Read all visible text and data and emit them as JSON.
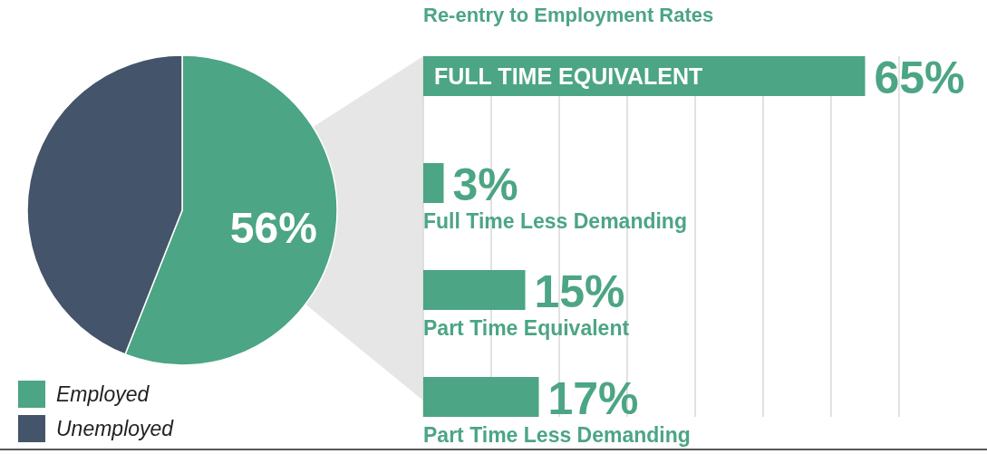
{
  "chart_data": [
    {
      "type": "pie",
      "categories": [
        "Employed",
        "Unemployed"
      ],
      "values": [
        56,
        44
      ],
      "colors": [
        "#4ca584",
        "#44546a"
      ],
      "value_labels": [
        "56%",
        null
      ],
      "legend": "bottom left"
    },
    {
      "type": "bar",
      "orientation": "horizontal",
      "title": "Re-entry to Employment Rates",
      "categories": [
        "FULL TIME EQUIVALENT",
        "Full Time Less Demanding",
        "Part Time Equivalent",
        "Part Time Less Demanding"
      ],
      "values": [
        65,
        3,
        15,
        17
      ],
      "value_labels": [
        "65%",
        "3%",
        "15%",
        "17%"
      ],
      "color": "#4ca584",
      "xlim": [
        0,
        70
      ],
      "xticks": [
        {
          "value": 0,
          "label": null
        },
        {
          "value": 10,
          "label": null
        },
        {
          "value": 20,
          "label": null
        },
        {
          "value": 30,
          "label": null
        },
        {
          "value": 40,
          "label": null
        },
        {
          "value": 50,
          "label": null
        },
        {
          "value": 60,
          "label": null
        },
        {
          "value": 70,
          "label": null
        }
      ],
      "grid": "x"
    }
  ]
}
